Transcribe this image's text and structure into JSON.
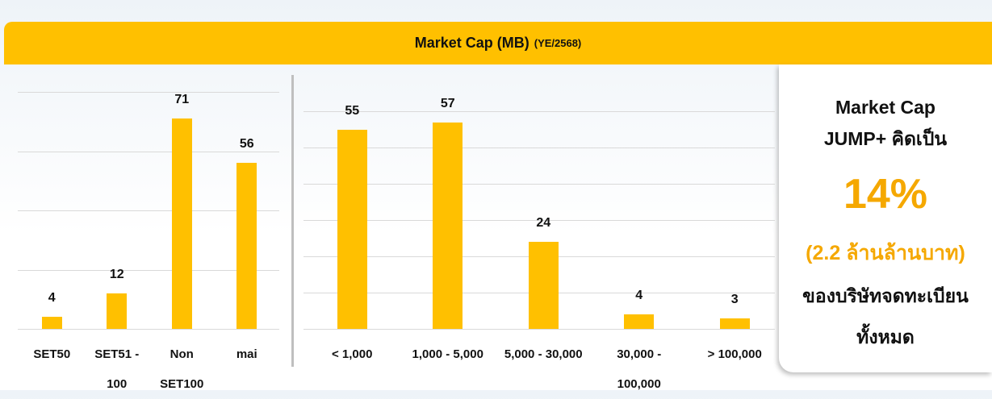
{
  "header": {
    "title": "Market Cap (MB)",
    "subtitle": "(YE/2568)"
  },
  "chart_data": [
    {
      "type": "bar",
      "categories": [
        "SET50",
        "SET51 - 100",
        "Non SET100",
        "mai"
      ],
      "values": [
        4,
        12,
        71,
        56
      ],
      "color": "#FFC000",
      "ylim": [
        0,
        80
      ],
      "yticks": [
        0,
        20,
        40,
        60,
        80
      ],
      "grid": true
    },
    {
      "type": "bar",
      "categories": [
        "< 1,000",
        "1,000 - 5,000",
        "5,000 - 30,000",
        "30,000 - 100,000",
        "> 100,000"
      ],
      "values": [
        55,
        57,
        24,
        4,
        3
      ],
      "color": "#FFC000",
      "ylim": [
        0,
        60
      ],
      "yticks": [
        0,
        10,
        20,
        30,
        40,
        50,
        60
      ],
      "grid": true
    }
  ],
  "panel": {
    "lines": [
      "Market Cap",
      "JUMP+ คิดเป็น"
    ],
    "highlight": "14%",
    "amount": "(2.2 ล้านล้านบาท)",
    "footer": [
      "ของบริษัทจดทะเบียน",
      "ทั้งหมด"
    ]
  }
}
